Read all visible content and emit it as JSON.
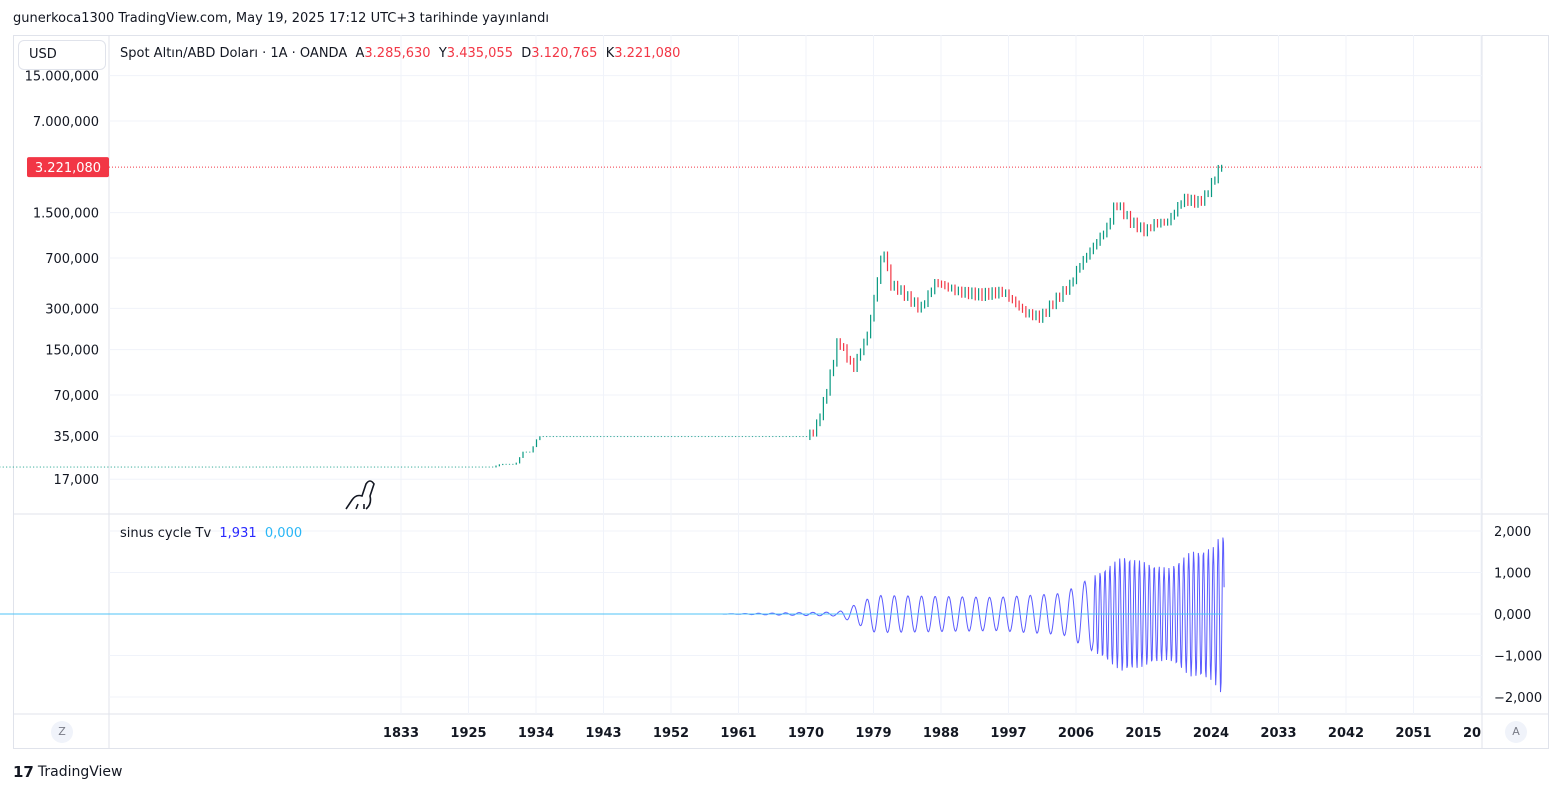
{
  "header": {
    "published": "gunerkoca1300 TradingView.com, May 19, 2025 17:12 UTC+3 tarihinde yayınlandı"
  },
  "currency_button": "USD",
  "legend": {
    "symbol": "Spot Altın/ABD Doları · 1A · OANDA",
    "o_label": "A",
    "o": "3.285,630",
    "h_label": "Y",
    "h": "3.435,055",
    "l_label": "D",
    "l": "3.120,765",
    "c_label": "K",
    "c": "3.221,080"
  },
  "osc_legend": {
    "name": "sinus cycle Tv",
    "v1": "1,931",
    "v2": "0,000"
  },
  "colors": {
    "up": "#089981",
    "down": "#f23645",
    "osc": "#5b5bff",
    "zero": "#4fc3f7",
    "last": "#f23645"
  },
  "footer": {
    "brand": "TradingView"
  },
  "buttons": {
    "z": "Z",
    "a": "A"
  },
  "chart_data": [
    {
      "type": "line",
      "title": "Spot Altın/ABD Doları",
      "scale": "log",
      "y_ticks": [
        "15.000,000",
        "7.000,000",
        "1.500,000",
        "700,000",
        "300,000",
        "150,000",
        "70,000",
        "35,000",
        "17,000"
      ],
      "y_tick_values": [
        15000000,
        7000000,
        1500000,
        700000,
        300000,
        150000,
        70000,
        35000,
        17000
      ],
      "last_price_label": "3.221,080",
      "last_price": 3221080,
      "x_ticks": [
        "1833",
        "1925",
        "1934",
        "1943",
        "1952",
        "1961",
        "1970",
        "1979",
        "1988",
        "1997",
        "2006",
        "2015",
        "2024",
        "2033",
        "2042",
        "2051",
        "20"
      ],
      "series": [
        {
          "name": "price",
          "points": [
            [
              1833,
              21000
            ],
            [
              1928,
              21000
            ],
            [
              1929,
              22000
            ],
            [
              1931,
              22000
            ],
            [
              1932,
              27000
            ],
            [
              1933,
              27000
            ],
            [
              1934,
              35000
            ],
            [
              1970,
              35000
            ],
            [
              1971,
              40000
            ],
            [
              1972,
              60000
            ],
            [
              1973,
              100000
            ],
            [
              1974,
              180000
            ],
            [
              1976,
              110000
            ],
            [
              1978,
              200000
            ],
            [
              1980,
              840000
            ],
            [
              1981,
              450000
            ],
            [
              1982,
              420000
            ],
            [
              1985,
              300000
            ],
            [
              1987,
              470000
            ],
            [
              1990,
              400000
            ],
            [
              1993,
              380000
            ],
            [
              1996,
              400000
            ],
            [
              1999,
              280000
            ],
            [
              2001,
              260000
            ],
            [
              2003,
              350000
            ],
            [
              2005,
              450000
            ],
            [
              2006,
              600000
            ],
            [
              2008,
              850000
            ],
            [
              2010,
              1200000
            ],
            [
              2011,
              1800000
            ],
            [
              2013,
              1300000
            ],
            [
              2015,
              1100000
            ],
            [
              2016,
              1250000
            ],
            [
              2018,
              1300000
            ],
            [
              2020,
              1900000
            ],
            [
              2022,
              1800000
            ],
            [
              2023,
              2000000
            ],
            [
              2025,
              3300000
            ]
          ]
        }
      ]
    },
    {
      "type": "line",
      "title": "sinus cycle Tv",
      "y_ticks": [
        "2,000",
        "1,000",
        "0,000",
        "−1,000",
        "−2,000"
      ],
      "y_tick_values": [
        2,
        1,
        0,
        -1,
        -2
      ],
      "ylim": [
        -2.4,
        2.4
      ],
      "amplitude_envelope": [
        [
          1833,
          0
        ],
        [
          1958,
          0
        ],
        [
          1974,
          0.05
        ],
        [
          1976,
          0.2
        ],
        [
          1979,
          0.45
        ],
        [
          1995,
          0.4
        ],
        [
          2004,
          0.5
        ],
        [
          2008,
          0.9
        ],
        [
          2012,
          1.4
        ],
        [
          2018,
          1.1
        ],
        [
          2021,
          1.5
        ],
        [
          2024,
          1.6
        ],
        [
          2025,
          1.93
        ]
      ]
    }
  ]
}
